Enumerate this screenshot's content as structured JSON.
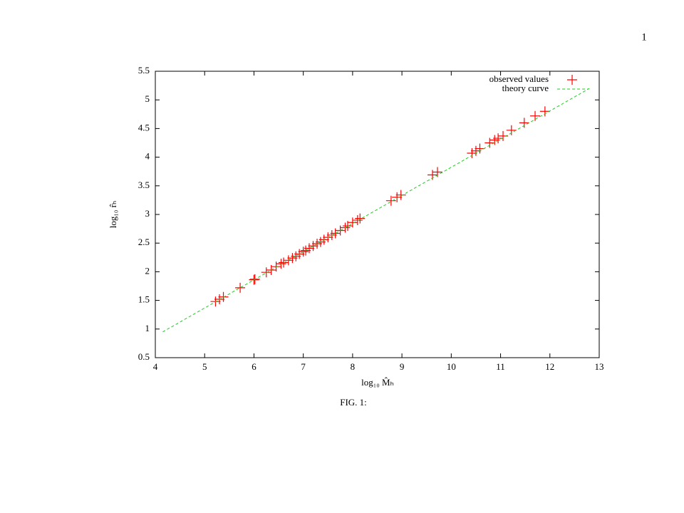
{
  "page_number": "1",
  "caption": "FIG. 1:",
  "chart_data": {
    "type": "scatter",
    "xlabel": "log₁₀ M̂ₕ",
    "ylabel": "log₁₀ r̂ₕ",
    "xlim": [
      4,
      13
    ],
    "ylim": [
      0.5,
      5.5
    ],
    "xticks": [
      4,
      5,
      6,
      7,
      8,
      9,
      10,
      11,
      12,
      13
    ],
    "yticks": [
      0.5,
      1,
      1.5,
      2,
      2.5,
      3,
      3.5,
      4,
      4.5,
      5,
      5.5
    ],
    "legend": "upper right",
    "series": [
      {
        "name": "observed values",
        "color": "#ff0000",
        "mode": "markers",
        "x": [
          5.22,
          5.3,
          5.38,
          5.72,
          6.0,
          6.02,
          6.25,
          6.35,
          6.45,
          6.55,
          6.6,
          6.7,
          6.78,
          6.85,
          6.92,
          7.0,
          7.05,
          7.12,
          7.2,
          7.28,
          7.35,
          7.42,
          7.5,
          7.58,
          7.65,
          7.75,
          7.85,
          7.9,
          8.0,
          8.1,
          8.15,
          8.78,
          8.9,
          8.98,
          9.62,
          9.72,
          10.42,
          10.5,
          10.58,
          10.78,
          10.88,
          10.95,
          11.05,
          11.22,
          11.48,
          11.7,
          11.9
        ],
        "values": [
          1.48,
          1.52,
          1.56,
          1.72,
          1.86,
          1.87,
          1.99,
          2.03,
          2.09,
          2.14,
          2.16,
          2.2,
          2.24,
          2.27,
          2.31,
          2.35,
          2.37,
          2.41,
          2.45,
          2.49,
          2.52,
          2.56,
          2.6,
          2.64,
          2.67,
          2.72,
          2.77,
          2.8,
          2.86,
          2.9,
          2.93,
          3.24,
          3.3,
          3.34,
          3.69,
          3.74,
          4.07,
          4.11,
          4.15,
          4.25,
          4.3,
          4.33,
          4.37,
          4.47,
          4.6,
          4.72,
          4.8
        ]
      },
      {
        "name": "theory curve",
        "color": "#22cc22",
        "mode": "dashed-line",
        "x": [
          4.15,
          12.8
        ],
        "values": [
          0.95,
          5.2
        ]
      }
    ]
  }
}
